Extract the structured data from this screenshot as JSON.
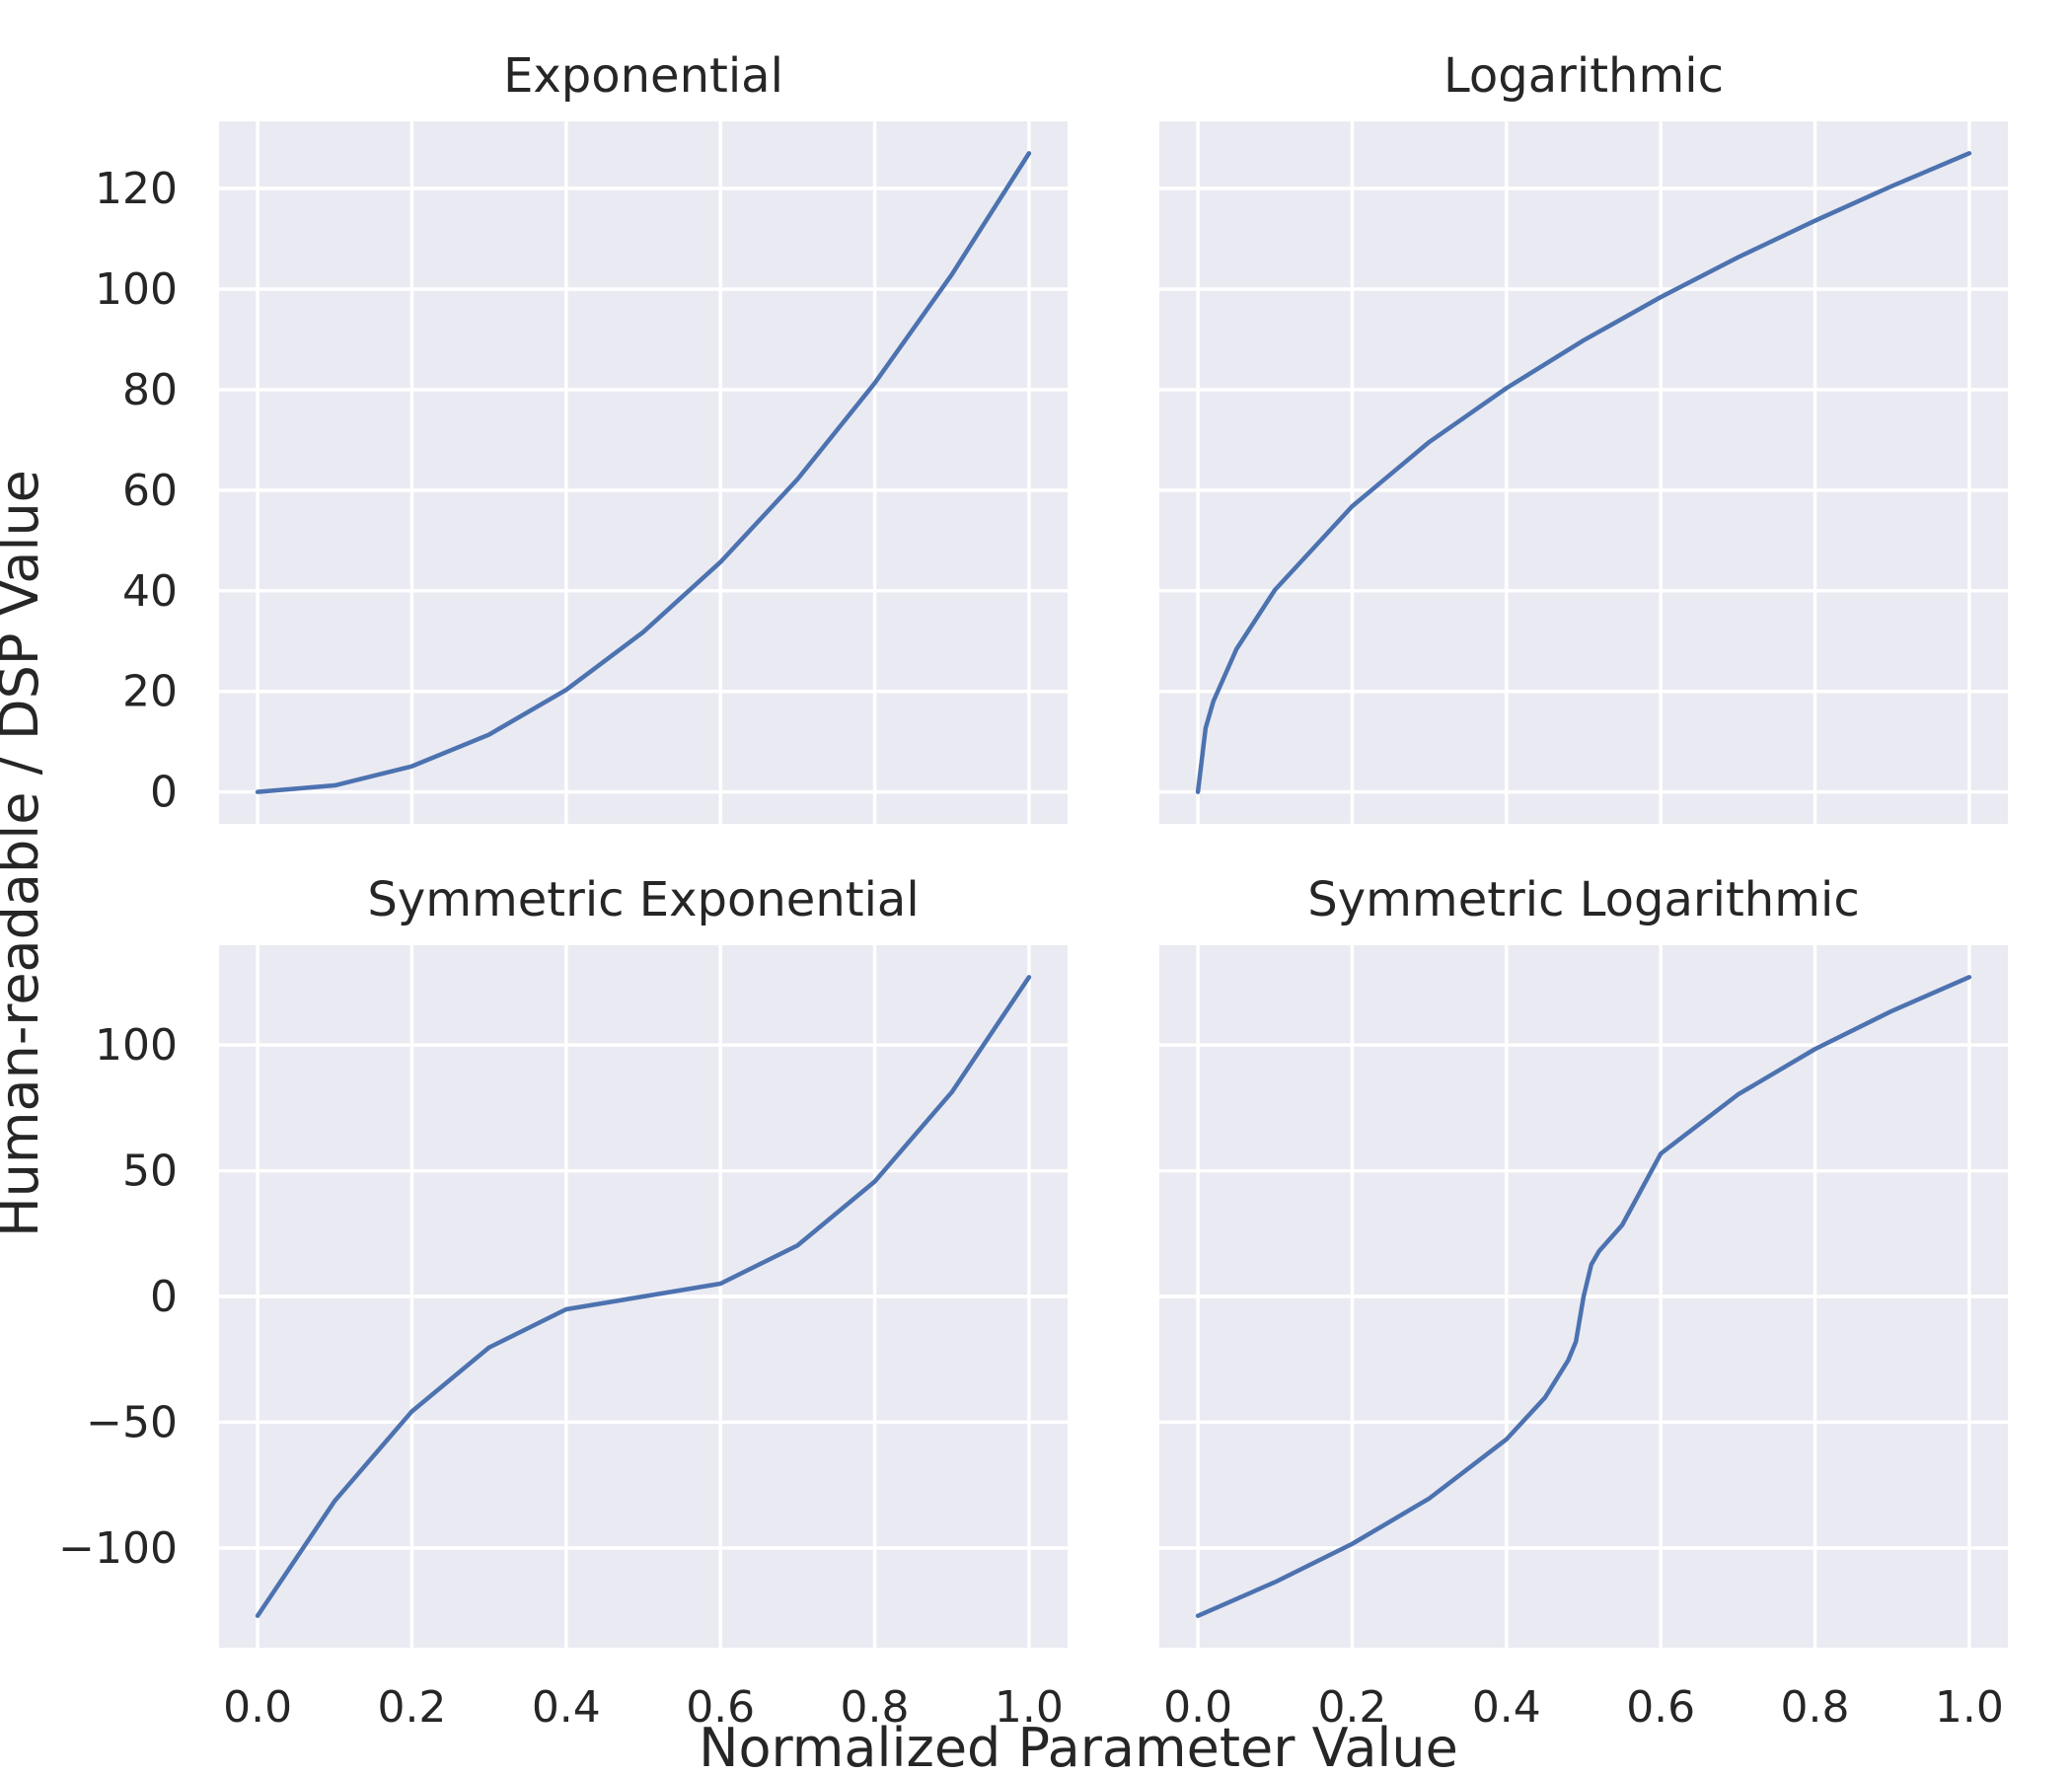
{
  "figure": {
    "xlabel": "Normalized Parameter Value",
    "ylabel": "Human-readable / DSP Value"
  },
  "colors": {
    "line": "#4C72B0",
    "panel_background": "#EAEAF2",
    "grid": "#FFFFFF",
    "text": "#262626"
  },
  "chart_data": [
    {
      "type": "line",
      "title": "Exponential",
      "xlim": [
        -0.05,
        1.05
      ],
      "ylim": [
        -6.35,
        133.35
      ],
      "xticks": [
        0.0,
        0.2,
        0.4,
        0.6,
        0.8,
        1.0
      ],
      "xtick_labels": [
        "0.0",
        "0.2",
        "0.4",
        "0.6",
        "0.8",
        "1.0"
      ],
      "yticks": [
        0,
        20,
        40,
        60,
        80,
        100,
        120
      ],
      "ytick_labels": [
        "0",
        "20",
        "40",
        "60",
        "80",
        "100",
        "120"
      ],
      "grid": true,
      "x": [
        0.0,
        0.1,
        0.2,
        0.3,
        0.4,
        0.5,
        0.6,
        0.7,
        0.8,
        0.9,
        1.0
      ],
      "y": [
        0,
        1.3,
        5.1,
        11.4,
        20.3,
        31.8,
        45.7,
        62.2,
        81.3,
        102.9,
        127
      ]
    },
    {
      "type": "line",
      "title": "Logarithmic",
      "xlim": [
        -0.05,
        1.05
      ],
      "ylim": [
        -6.35,
        133.35
      ],
      "xticks": [
        0.0,
        0.2,
        0.4,
        0.6,
        0.8,
        1.0
      ],
      "xtick_labels": [
        "0.0",
        "0.2",
        "0.4",
        "0.6",
        "0.8",
        "1.0"
      ],
      "yticks": [
        0,
        20,
        40,
        60,
        80,
        100,
        120
      ],
      "ytick_labels": [],
      "grid": true,
      "x": [
        0.0,
        0.01,
        0.02,
        0.05,
        0.1,
        0.2,
        0.3,
        0.4,
        0.5,
        0.6,
        0.7,
        0.8,
        0.9,
        1.0
      ],
      "y": [
        0,
        12.7,
        18.0,
        28.4,
        40.2,
        56.8,
        69.6,
        80.3,
        89.8,
        98.4,
        106.3,
        113.6,
        120.5,
        127
      ]
    },
    {
      "type": "line",
      "title": "Symmetric Exponential",
      "xlim": [
        -0.05,
        1.05
      ],
      "ylim": [
        -139.7,
        139.7
      ],
      "xticks": [
        0.0,
        0.2,
        0.4,
        0.6,
        0.8,
        1.0
      ],
      "xtick_labels": [
        "0.0",
        "0.2",
        "0.4",
        "0.6",
        "0.8",
        "1.0"
      ],
      "yticks": [
        -100,
        -50,
        0,
        50,
        100
      ],
      "ytick_labels": [
        "−100",
        "−50",
        "0",
        "50",
        "100"
      ],
      "grid": true,
      "x": [
        0.0,
        0.1,
        0.2,
        0.3,
        0.4,
        0.5,
        0.6,
        0.7,
        0.8,
        0.9,
        1.0
      ],
      "y": [
        -127,
        -81.3,
        -45.7,
        -20.3,
        -5.1,
        0,
        5.1,
        20.3,
        45.7,
        81.3,
        127
      ]
    },
    {
      "type": "line",
      "title": "Symmetric Logarithmic",
      "xlim": [
        -0.05,
        1.05
      ],
      "ylim": [
        -139.7,
        139.7
      ],
      "xticks": [
        0.0,
        0.2,
        0.4,
        0.6,
        0.8,
        1.0
      ],
      "xtick_labels": [
        "0.0",
        "0.2",
        "0.4",
        "0.6",
        "0.8",
        "1.0"
      ],
      "yticks": [
        -100,
        -50,
        0,
        50,
        100
      ],
      "ytick_labels": [],
      "grid": true,
      "x": [
        0.0,
        0.1,
        0.2,
        0.3,
        0.4,
        0.45,
        0.48,
        0.49,
        0.5,
        0.51,
        0.52,
        0.55,
        0.6,
        0.7,
        0.8,
        0.9,
        1.0
      ],
      "y": [
        -127,
        -113.6,
        -98.4,
        -80.3,
        -56.8,
        -40.2,
        -25.4,
        -18.0,
        0,
        12.7,
        18.0,
        28.4,
        56.8,
        80.3,
        98.4,
        113.6,
        127
      ]
    }
  ]
}
